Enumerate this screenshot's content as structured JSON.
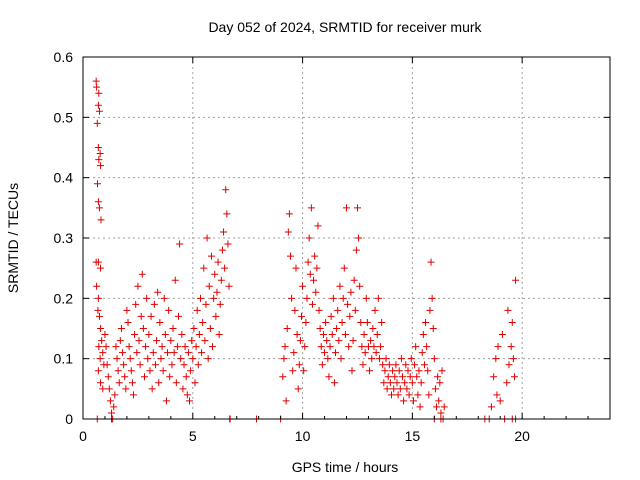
{
  "chart_data": {
    "type": "scatter",
    "title": "Day 052 of 2024, SRMTID for receiver murk",
    "xlabel": "GPS time / hours",
    "ylabel": "SRMTID / TECUs",
    "xlim": [
      0,
      24
    ],
    "ylim": [
      0,
      0.6
    ],
    "xticks": [
      0,
      5,
      10,
      15,
      20
    ],
    "yticks": [
      0,
      0.1,
      0.2,
      0.3,
      0.4,
      0.5,
      0.6
    ],
    "xtick_labels": [
      "0",
      "5",
      "10",
      "15",
      "20"
    ],
    "ytick_labels": [
      "0",
      "0.1",
      "0.2",
      "0.3",
      "0.4",
      "0.5",
      "0.6"
    ],
    "grid": true,
    "marker": "+",
    "series": [
      {
        "color": "#e00000",
        "points": [
          [
            0.6,
            0.56
          ],
          [
            0.62,
            0.55
          ],
          [
            0.7,
            0.52
          ],
          [
            0.72,
            0.54
          ],
          [
            0.75,
            0.51
          ],
          [
            0.65,
            0.49
          ],
          [
            0.7,
            0.45
          ],
          [
            0.72,
            0.43
          ],
          [
            0.78,
            0.44
          ],
          [
            0.8,
            0.42
          ],
          [
            0.66,
            0.39
          ],
          [
            0.7,
            0.36
          ],
          [
            0.75,
            0.35
          ],
          [
            0.82,
            0.33
          ],
          [
            0.6,
            0.26
          ],
          [
            0.7,
            0.26
          ],
          [
            0.8,
            0.25
          ],
          [
            0.62,
            0.22
          ],
          [
            0.7,
            0.2
          ],
          [
            0.68,
            0.18
          ],
          [
            0.75,
            0.17
          ],
          [
            0.8,
            0.15
          ],
          [
            0.85,
            0.13
          ],
          [
            0.72,
            0.12
          ],
          [
            0.78,
            0.1
          ],
          [
            0.9,
            0.11
          ],
          [
            0.95,
            0.09
          ],
          [
            0.7,
            0.08
          ],
          [
            0.8,
            0.06
          ],
          [
            0.9,
            0.05
          ],
          [
            1.0,
            0.14
          ],
          [
            1.05,
            0.12
          ],
          [
            1.1,
            0.09
          ],
          [
            1.15,
            0.07
          ],
          [
            1.2,
            0.05
          ],
          [
            1.25,
            0.03
          ],
          [
            1.3,
            0.01
          ],
          [
            1.35,
            0.0
          ],
          [
            1.4,
            0.02
          ],
          [
            1.45,
            0.04
          ],
          [
            1.5,
            0.12
          ],
          [
            1.55,
            0.1
          ],
          [
            1.6,
            0.08
          ],
          [
            1.65,
            0.06
          ],
          [
            1.7,
            0.13
          ],
          [
            1.75,
            0.15
          ],
          [
            1.8,
            0.11
          ],
          [
            1.85,
            0.09
          ],
          [
            1.9,
            0.07
          ],
          [
            1.95,
            0.05
          ],
          [
            2.0,
            0.18
          ],
          [
            2.05,
            0.16
          ],
          [
            2.1,
            0.12
          ],
          [
            2.15,
            0.1
          ],
          [
            2.2,
            0.08
          ],
          [
            2.25,
            0.06
          ],
          [
            2.3,
            0.04
          ],
          [
            2.35,
            0.14
          ],
          [
            2.4,
            0.19
          ],
          [
            2.45,
            0.11
          ],
          [
            2.5,
            0.22
          ],
          [
            2.55,
            0.13
          ],
          [
            2.6,
            0.09
          ],
          [
            2.65,
            0.17
          ],
          [
            2.7,
            0.24
          ],
          [
            2.75,
            0.15
          ],
          [
            2.8,
            0.07
          ],
          [
            2.85,
            0.12
          ],
          [
            2.9,
            0.2
          ],
          [
            2.95,
            0.1
          ],
          [
            3.0,
            0.14
          ],
          [
            3.05,
            0.08
          ],
          [
            3.1,
            0.17
          ],
          [
            3.15,
            0.05
          ],
          [
            3.2,
            0.11
          ],
          [
            3.25,
            0.19
          ],
          [
            3.3,
            0.09
          ],
          [
            3.35,
            0.13
          ],
          [
            3.4,
            0.21
          ],
          [
            3.45,
            0.06
          ],
          [
            3.5,
            0.16
          ],
          [
            3.55,
            0.1
          ],
          [
            3.6,
            0.12
          ],
          [
            3.65,
            0.08
          ],
          [
            3.7,
            0.2
          ],
          [
            3.75,
            0.14
          ],
          [
            3.8,
            0.03
          ],
          [
            3.85,
            0.11
          ],
          [
            3.9,
            0.18
          ],
          [
            3.95,
            0.07
          ],
          [
            4.0,
            0.13
          ],
          [
            4.05,
            0.09
          ],
          [
            4.1,
            0.15
          ],
          [
            4.15,
            0.11
          ],
          [
            4.2,
            0.23
          ],
          [
            4.25,
            0.06
          ],
          [
            4.3,
            0.12
          ],
          [
            4.35,
            0.17
          ],
          [
            4.4,
            0.29
          ],
          [
            4.45,
            0.1
          ],
          [
            4.5,
            0.14
          ],
          [
            4.55,
            0.05
          ],
          [
            4.6,
            0.09
          ],
          [
            4.65,
            0.12
          ],
          [
            4.7,
            0.07
          ],
          [
            4.75,
            0.04
          ],
          [
            4.8,
            0.11
          ],
          [
            4.85,
            0.03
          ],
          [
            4.9,
            0.08
          ],
          [
            4.95,
            0.13
          ],
          [
            5.0,
            0.1
          ],
          [
            5.05,
            0.15
          ],
          [
            5.1,
            0.06
          ],
          [
            5.15,
            0.12
          ],
          [
            5.2,
            0.18
          ],
          [
            5.25,
            0.09
          ],
          [
            5.3,
            0.14
          ],
          [
            5.35,
            0.2
          ],
          [
            5.4,
            0.11
          ],
          [
            5.45,
            0.16
          ],
          [
            5.5,
            0.25
          ],
          [
            5.55,
            0.13
          ],
          [
            5.6,
            0.19
          ],
          [
            5.65,
            0.3
          ],
          [
            5.7,
            0.1
          ],
          [
            5.75,
            0.22
          ],
          [
            5.8,
            0.15
          ],
          [
            5.85,
            0.27
          ],
          [
            5.9,
            0.12
          ],
          [
            5.95,
            0.2
          ],
          [
            6.0,
            0.24
          ],
          [
            6.05,
            0.17
          ],
          [
            6.1,
            0.21
          ],
          [
            6.15,
            0.26
          ],
          [
            6.2,
            0.14
          ],
          [
            6.25,
            0.19
          ],
          [
            6.3,
            0.23
          ],
          [
            6.35,
            0.28
          ],
          [
            6.4,
            0.31
          ],
          [
            6.45,
            0.25
          ],
          [
            6.5,
            0.38
          ],
          [
            6.55,
            0.34
          ],
          [
            6.6,
            0.29
          ],
          [
            6.65,
            0.22
          ],
          [
            6.7,
            0.0
          ],
          [
            6.68,
            0.0
          ],
          [
            0.65,
            0.0
          ],
          [
            1.3,
            0.0
          ],
          [
            7.9,
            0.0
          ],
          [
            9.0,
            0.0
          ],
          [
            9.1,
            0.07
          ],
          [
            9.15,
            0.1
          ],
          [
            9.2,
            0.12
          ],
          [
            9.25,
            0.03
          ],
          [
            9.3,
            0.15
          ],
          [
            9.35,
            0.31
          ],
          [
            9.4,
            0.34
          ],
          [
            9.45,
            0.27
          ],
          [
            9.5,
            0.2
          ],
          [
            9.55,
            0.08
          ],
          [
            9.6,
            0.11
          ],
          [
            9.65,
            0.18
          ],
          [
            9.7,
            0.25
          ],
          [
            9.75,
            0.14
          ],
          [
            9.8,
            0.05
          ],
          [
            9.85,
            0.09
          ],
          [
            9.9,
            0.13
          ],
          [
            9.95,
            0.17
          ],
          [
            10.0,
            0.22
          ],
          [
            10.05,
            0.08
          ],
          [
            10.1,
            0.12
          ],
          [
            10.15,
            0.16
          ],
          [
            10.2,
            0.2
          ],
          [
            10.25,
            0.26
          ],
          [
            10.3,
            0.3
          ],
          [
            10.35,
            0.24
          ],
          [
            10.4,
            0.35
          ],
          [
            10.45,
            0.19
          ],
          [
            10.5,
            0.23
          ],
          [
            10.55,
            0.27
          ],
          [
            10.6,
            0.21
          ],
          [
            10.65,
            0.25
          ],
          [
            10.7,
            0.32
          ],
          [
            10.75,
            0.18
          ],
          [
            10.8,
            0.15
          ],
          [
            10.85,
            0.12
          ],
          [
            10.9,
            0.09
          ],
          [
            10.95,
            0.14
          ],
          [
            11.0,
            0.11
          ],
          [
            11.05,
            0.16
          ],
          [
            11.1,
            0.13
          ],
          [
            11.15,
            0.1
          ],
          [
            11.2,
            0.07
          ],
          [
            11.25,
            0.12
          ],
          [
            11.3,
            0.17
          ],
          [
            11.35,
            0.14
          ],
          [
            11.4,
            0.2
          ],
          [
            11.45,
            0.06
          ],
          [
            11.5,
            0.11
          ],
          [
            11.55,
            0.15
          ],
          [
            11.6,
            0.18
          ],
          [
            11.65,
            0.13
          ],
          [
            11.7,
            0.22
          ],
          [
            11.75,
            0.1
          ],
          [
            11.8,
            0.16
          ],
          [
            11.85,
            0.2
          ],
          [
            11.9,
            0.25
          ],
          [
            11.95,
            0.14
          ],
          [
            12.0,
            0.35
          ],
          [
            12.05,
            0.19
          ],
          [
            12.1,
            0.12
          ],
          [
            12.15,
            0.17
          ],
          [
            12.2,
            0.21
          ],
          [
            12.25,
            0.08
          ],
          [
            12.3,
            0.13
          ],
          [
            12.35,
            0.23
          ],
          [
            12.4,
            0.18
          ],
          [
            12.45,
            0.28
          ],
          [
            12.5,
            0.35
          ],
          [
            12.55,
            0.3
          ],
          [
            12.6,
            0.22
          ],
          [
            12.65,
            0.16
          ],
          [
            12.7,
            0.12
          ],
          [
            12.75,
            0.09
          ],
          [
            12.8,
            0.14
          ],
          [
            12.85,
            0.11
          ],
          [
            12.9,
            0.2
          ],
          [
            12.95,
            0.16
          ],
          [
            13.0,
            0.12
          ],
          [
            13.05,
            0.08
          ],
          [
            13.1,
            0.13
          ],
          [
            13.15,
            0.1
          ],
          [
            13.2,
            0.15
          ],
          [
            13.25,
            0.12
          ],
          [
            13.3,
            0.18
          ],
          [
            13.35,
            0.11
          ],
          [
            13.4,
            0.14
          ],
          [
            13.45,
            0.2
          ],
          [
            13.5,
            0.1
          ],
          [
            13.55,
            0.12
          ],
          [
            13.6,
            0.16
          ],
          [
            13.65,
            0.09
          ],
          [
            13.7,
            0.06
          ],
          [
            13.75,
            0.08
          ],
          [
            13.8,
            0.1
          ],
          [
            13.85,
            0.05
          ],
          [
            13.9,
            0.07
          ],
          [
            13.95,
            0.09
          ],
          [
            14.0,
            0.06
          ],
          [
            14.05,
            0.04
          ],
          [
            14.1,
            0.08
          ],
          [
            14.15,
            0.05
          ],
          [
            14.2,
            0.07
          ],
          [
            14.25,
            0.09
          ],
          [
            14.3,
            0.06
          ],
          [
            14.35,
            0.04
          ],
          [
            14.4,
            0.08
          ],
          [
            14.45,
            0.05
          ],
          [
            14.5,
            0.1
          ],
          [
            14.55,
            0.07
          ],
          [
            14.6,
            0.03
          ],
          [
            14.65,
            0.06
          ],
          [
            14.7,
            0.09
          ],
          [
            14.75,
            0.05
          ],
          [
            14.8,
            0.08
          ],
          [
            14.85,
            0.04
          ],
          [
            14.9,
            0.07
          ],
          [
            14.95,
            0.1
          ],
          [
            15.0,
            0.06
          ],
          [
            15.05,
            0.03
          ],
          [
            15.1,
            0.09
          ],
          [
            15.15,
            0.12
          ],
          [
            15.2,
            0.07
          ],
          [
            15.25,
            0.04
          ],
          [
            15.3,
            0.08
          ],
          [
            15.35,
            0.02
          ],
          [
            15.4,
            0.06
          ],
          [
            15.45,
            0.11
          ],
          [
            15.5,
            0.14
          ],
          [
            15.55,
            0.09
          ],
          [
            15.6,
            0.16
          ],
          [
            15.65,
            0.12
          ],
          [
            15.7,
            0.08
          ],
          [
            15.75,
            0.04
          ],
          [
            15.8,
            0.18
          ],
          [
            15.85,
            0.26
          ],
          [
            15.9,
            0.2
          ],
          [
            15.95,
            0.15
          ],
          [
            16.0,
            0.1
          ],
          [
            16.05,
            0.05
          ],
          [
            16.1,
            0.02
          ],
          [
            16.15,
            0.07
          ],
          [
            16.2,
            0.03
          ],
          [
            16.25,
            0.06
          ],
          [
            16.3,
            0.01
          ],
          [
            16.35,
            0.08
          ],
          [
            16.4,
            0.0
          ],
          [
            16.45,
            0.02
          ],
          [
            16.0,
            0.0
          ],
          [
            16.3,
            0.0
          ],
          [
            18.3,
            0.0
          ],
          [
            18.5,
            0.0
          ],
          [
            18.6,
            0.02
          ],
          [
            18.7,
            0.07
          ],
          [
            18.8,
            0.1
          ],
          [
            18.85,
            0.04
          ],
          [
            18.9,
            0.12
          ],
          [
            19.0,
            0.03
          ],
          [
            19.1,
            0.14
          ],
          [
            19.2,
            0.0
          ],
          [
            19.3,
            0.06
          ],
          [
            19.35,
            0.18
          ],
          [
            19.4,
            0.09
          ],
          [
            19.5,
            0.12
          ],
          [
            19.55,
            0.16
          ],
          [
            19.6,
            0.1
          ],
          [
            19.65,
            0.07
          ],
          [
            19.7,
            0.23
          ],
          [
            19.7,
            0.0
          ],
          [
            19.55,
            0.0
          ]
        ]
      }
    ]
  }
}
